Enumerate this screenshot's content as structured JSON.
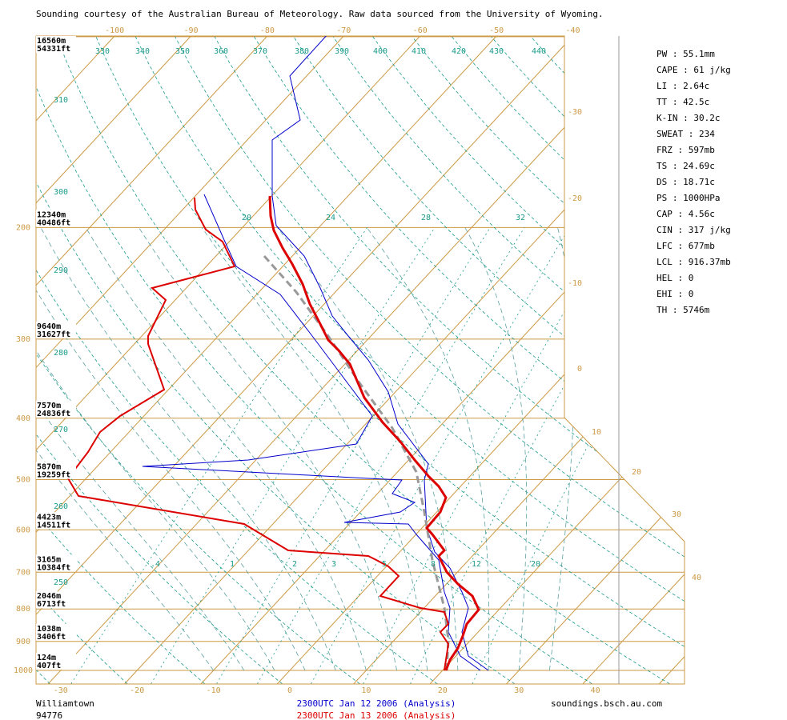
{
  "header": "Sounding courtesy of the Australian Bureau of Meteorology.  Raw data sourced from the University of Wyoming.",
  "pressure_levels": [
    {
      "pressure": 1000,
      "height_m": "124m",
      "height_ft": "407ft"
    },
    {
      "pressure": 900,
      "height_m": "1038m",
      "height_ft": "3406ft"
    },
    {
      "pressure": 800,
      "height_m": "2046m",
      "height_ft": "6713ft"
    },
    {
      "pressure": 700,
      "height_m": "3165m",
      "height_ft": "10384ft"
    },
    {
      "pressure": 600,
      "height_m": "4423m",
      "height_ft": "14511ft"
    },
    {
      "pressure": 500,
      "height_m": "5870m",
      "height_ft": "19259ft"
    },
    {
      "pressure": 400,
      "height_m": "7570m",
      "height_ft": "24836ft"
    },
    {
      "pressure": 300,
      "height_m": "9640m",
      "height_ft": "31627ft"
    },
    {
      "pressure": 200,
      "height_m": "12340m",
      "height_ft": "40486ft"
    }
  ],
  "top_height": {
    "height_m": "16560m",
    "height_ft": "54331ft"
  },
  "bottom_temps": [
    -30,
    -20,
    -10,
    0,
    10,
    20,
    30,
    40
  ],
  "top_temps": [
    -100,
    -90,
    -80,
    -70,
    -60,
    -50,
    -40
  ],
  "right_temps": [
    -30,
    -20,
    -10,
    0,
    10,
    20,
    30,
    40
  ],
  "theta_top": [
    330,
    340,
    350,
    360,
    370,
    380,
    390,
    400,
    410,
    420,
    430,
    440
  ],
  "theta_left": [
    310,
    300,
    290,
    280,
    270,
    260,
    250
  ],
  "mixing_upper": [
    20,
    24,
    28,
    32
  ],
  "mixing_lower": [
    ".4",
    "1",
    "2",
    "3",
    "5",
    "8",
    "12",
    "20"
  ],
  "indices": [
    "PW : 55.1mm",
    "CAPE : 61 j/kg",
    "LI : 2.64c",
    "TT : 42.5c",
    "K-IN : 30.2c",
    "SWEAT : 234",
    "FRZ : 597mb",
    "TS : 24.69c",
    "DS : 18.71c",
    "PS : 1000HPa",
    "CAP : 4.56c",
    "CIN : 317 j/kg",
    "LFC : 677mb",
    "LCL : 916.37mb",
    "HEL : 0",
    "EHI : 0",
    "TH : 5746m"
  ],
  "footer": {
    "station": "Williamtown",
    "station_id": "94776",
    "run_blue": "2300UTC Jan 12 2006 (Analysis)",
    "run_red": "2300UTC Jan 13 2006 (Analysis)",
    "site": "soundings.bsch.au.com"
  }
}
